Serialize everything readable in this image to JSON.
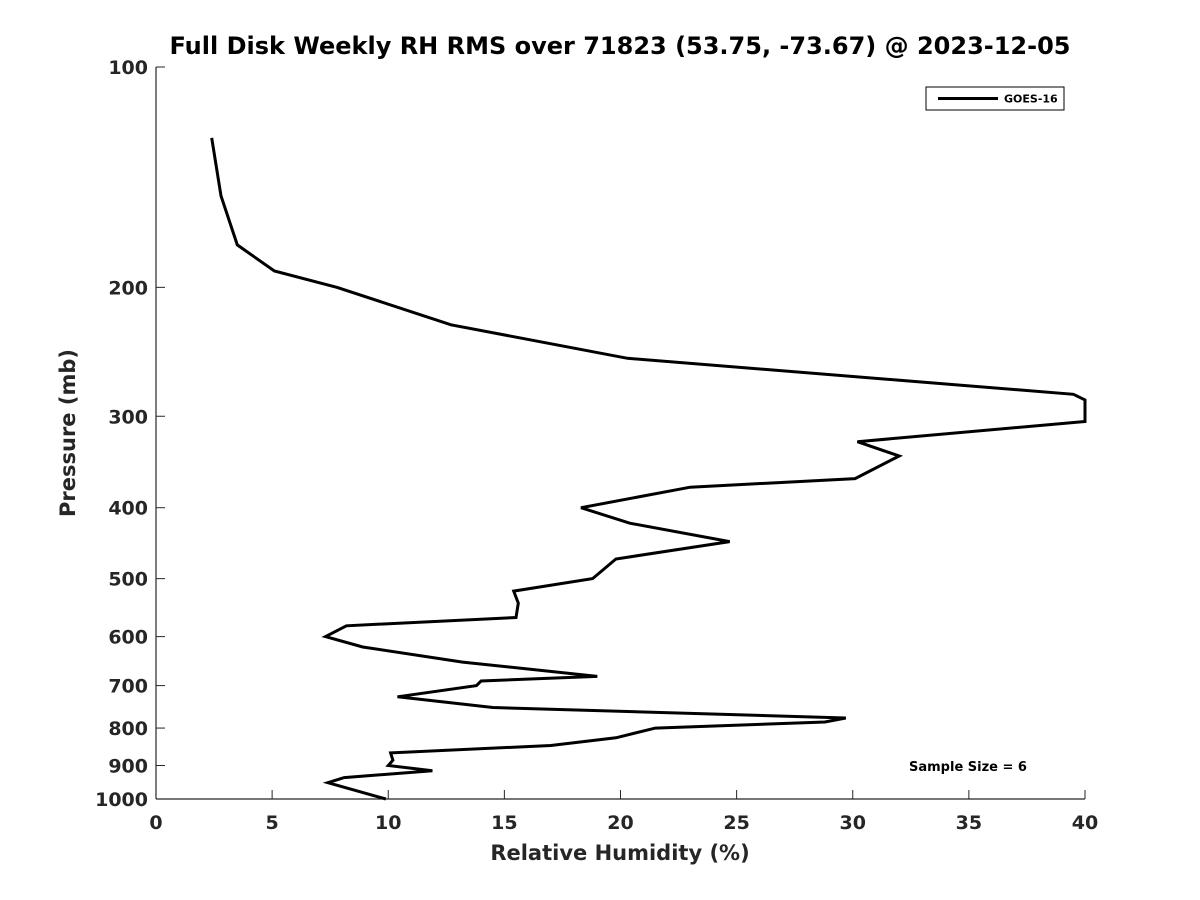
{
  "chart_data": {
    "type": "line",
    "title": "Full Disk Weekly RH RMS over 71823 (53.75, -73.67) @ 2023-12-05",
    "xlabel": "Relative Humidity (%)",
    "ylabel": "Pressure (mb)",
    "xlim": [
      0,
      40
    ],
    "ylim": [
      100,
      1000
    ],
    "yscale": "log",
    "y_reversed": true,
    "xticks": [
      0,
      5,
      10,
      15,
      20,
      25,
      30,
      35,
      40
    ],
    "yticks": [
      100,
      200,
      300,
      400,
      500,
      600,
      700,
      800,
      900,
      1000
    ],
    "grid": false,
    "legend_position": "top-right",
    "annotation": "Sample Size = 6",
    "series": [
      {
        "name": "GOES-16",
        "color": "#000000",
        "x": [
          2.4,
          2.8,
          3.5,
          5.1,
          7.8,
          12.7,
          20.3,
          39.5,
          40.0,
          40.0,
          30.2,
          32.0,
          30.1,
          23.0,
          18.3,
          20.4,
          24.7,
          19.8,
          18.8,
          15.4,
          15.6,
          15.5,
          8.2,
          7.3,
          8.9,
          13.2,
          19.0,
          14.0,
          13.8,
          10.4,
          14.5,
          29.7,
          28.8,
          21.5,
          19.8,
          17.0,
          10.1,
          10.2,
          10.0,
          11.9,
          8.1,
          7.4,
          9.9
        ],
        "y": [
          125,
          150,
          175,
          190,
          200,
          225,
          250,
          280,
          285,
          305,
          325,
          340,
          365,
          375,
          400,
          420,
          445,
          470,
          500,
          520,
          540,
          565,
          580,
          600,
          620,
          650,
          680,
          690,
          700,
          725,
          750,
          775,
          785,
          800,
          825,
          845,
          865,
          885,
          900,
          915,
          935,
          950,
          1000
        ]
      }
    ]
  }
}
